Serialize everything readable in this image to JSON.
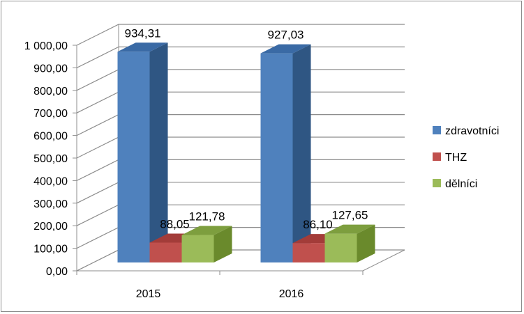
{
  "chart_data": {
    "type": "bar",
    "title": "",
    "xlabel": "",
    "ylabel": "",
    "ylim": [
      0,
      1000
    ],
    "ytick_step": 100,
    "ytick_labels": [
      "0,00",
      "100,00",
      "200,00",
      "300,00",
      "400,00",
      "500,00",
      "600,00",
      "700,00",
      "800,00",
      "900,00",
      "1 000,00"
    ],
    "categories": [
      "2015",
      "2016"
    ],
    "series": [
      {
        "name": "zdravotníci",
        "values": [
          934.31,
          927.03
        ],
        "labels": [
          "934,31",
          "927,03"
        ],
        "color": "#4f81bd",
        "side": "#2f5683",
        "top": "#3a6aa5"
      },
      {
        "name": "THZ",
        "values": [
          88.05,
          86.1
        ],
        "labels": [
          "88,05",
          "86,10"
        ],
        "color": "#c0504d",
        "side": "#8c2e2c",
        "top": "#a33c39"
      },
      {
        "name": "dělníci",
        "values": [
          121.78,
          127.65
        ],
        "labels": [
          "121,78",
          "127,65"
        ],
        "color": "#9bbb59",
        "side": "#6a8a2c",
        "top": "#7d9e3e"
      }
    ],
    "grid": true,
    "legend_position": "right",
    "style": "3d-column"
  }
}
